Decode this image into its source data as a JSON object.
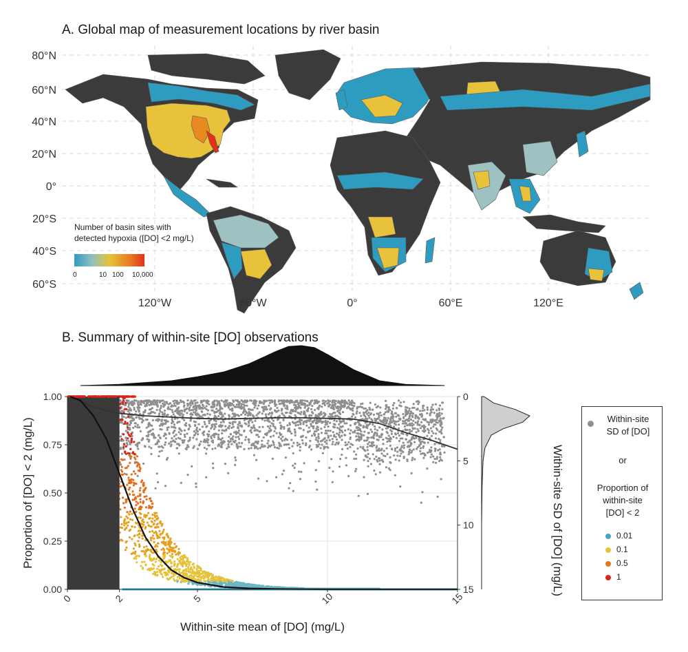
{
  "panel_a": {
    "title": "A. Global map of measurement locations by river basin",
    "lat_ticks": [
      "80°N",
      "60°N",
      "40°N",
      "20°N",
      "0°",
      "20°S",
      "40°S",
      "60°S"
    ],
    "lon_ticks": [
      "120°W",
      "60°W",
      "0°",
      "60°E",
      "120°E"
    ],
    "legend_title_line1": "Number of basin sites with",
    "legend_title_line2": "detected hypoxia ([DO] <2 mg/L)",
    "legend_ticks": [
      "0",
      "10",
      "100",
      "10,000"
    ],
    "colors": {
      "ocean": "#ffffff",
      "land": "#3b3b3b",
      "low": "#2e9bc0",
      "mid": "#e8c23a",
      "high": "#e2301a",
      "pale": "#9ec2c2"
    }
  },
  "panel_b": {
    "title": "B. Summary of within-site [DO] observations",
    "xlabel": "Within-site mean of [DO] (mg/L)",
    "ylabel_left": "Proportion of [DO] < 2 (mg/L)",
    "ylabel_right": "Within-site SD of [DO] (mg/L)"
  },
  "legend": {
    "sd_label_1": "Within-site",
    "sd_label_2": "SD of [DO]",
    "or_label": "or",
    "prop_label_1": "Proportion of",
    "prop_label_2": "within-site",
    "prop_label_3": "[DO] < 2",
    "items": [
      {
        "label": "0.01",
        "color": "#4aa3c4"
      },
      {
        "label": "0.1",
        "color": "#e4c33a"
      },
      {
        "label": "0.5",
        "color": "#e07a1c"
      },
      {
        "label": "1",
        "color": "#d6261a"
      }
    ],
    "sd_color": "#8f8f8f"
  },
  "chart_data": [
    {
      "type": "scatter",
      "x_axis": {
        "label": "Within-site mean of [DO] (mg/L)",
        "range": [
          0,
          15
        ],
        "ticks": [
          0,
          2,
          5,
          10,
          15
        ]
      },
      "y_axis_left": {
        "label": "Proportion of [DO] < 2 (mg/L)",
        "range": [
          0,
          1
        ],
        "ticks": [
          0.0,
          0.25,
          0.5,
          0.75,
          1.0
        ],
        "tick_labels": [
          "0.00",
          "0.25",
          "0.50",
          "0.75",
          "1.00"
        ]
      },
      "y_axis_right": {
        "label": "Within-site SD of [DO] (mg/L)",
        "range": [
          0,
          15
        ],
        "reversed": true,
        "ticks": [
          0,
          5,
          10,
          15
        ]
      },
      "shaded_region": {
        "x": [
          0,
          2
        ],
        "color": "#3a3a3a"
      },
      "series": [
        {
          "name": "Proportion of within-site [DO] < 2",
          "kind": "smooth-line",
          "x": [
            0.1,
            0.5,
            1,
            1.5,
            2,
            2.5,
            3,
            3.5,
            4,
            4.5,
            5,
            6,
            7,
            8,
            9,
            10,
            12,
            15
          ],
          "y": [
            1.0,
            0.98,
            0.9,
            0.78,
            0.6,
            0.42,
            0.27,
            0.17,
            0.1,
            0.06,
            0.035,
            0.012,
            0.005,
            0.002,
            0.001,
            0.0,
            0.0,
            0.0
          ]
        },
        {
          "name": "Within-site SD of [DO]",
          "kind": "smooth-line",
          "axis": "right",
          "x": [
            0.1,
            0.5,
            1,
            1.5,
            2,
            3,
            4,
            5,
            6,
            7,
            8,
            9,
            10,
            11,
            12,
            13,
            14,
            15
          ],
          "y": [
            0.1,
            0.4,
            0.8,
            1.1,
            1.3,
            1.5,
            1.6,
            1.7,
            1.75,
            1.7,
            1.65,
            1.65,
            1.7,
            1.75,
            2.1,
            2.8,
            3.4,
            4.1
          ]
        }
      ],
      "marginal_top": {
        "x": [
          0.5,
          2,
          4,
          5,
          6,
          7,
          8,
          8.5,
          9,
          9.5,
          10,
          11,
          12,
          13,
          14.5
        ],
        "density": [
          0.0,
          0.03,
          0.12,
          0.22,
          0.34,
          0.55,
          0.85,
          0.98,
          1.0,
          0.95,
          0.78,
          0.4,
          0.12,
          0.03,
          0.0
        ]
      },
      "marginal_right": {
        "sd": [
          0,
          0.5,
          1,
          1.5,
          2,
          2.5,
          3,
          4,
          5,
          7,
          10,
          15
        ],
        "density": [
          0.05,
          0.25,
          0.7,
          1.0,
          0.85,
          0.45,
          0.2,
          0.07,
          0.03,
          0.01,
          0.0,
          0.0
        ]
      }
    }
  ]
}
